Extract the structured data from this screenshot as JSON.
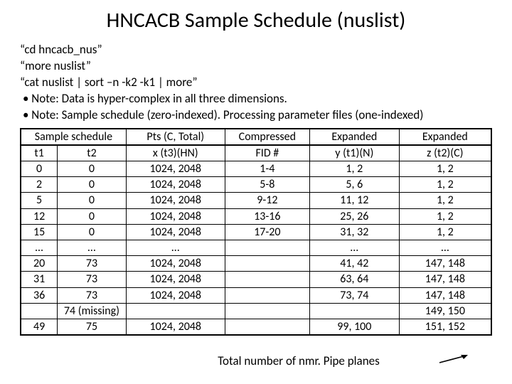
{
  "title": "HNCACB Sample Schedule (nuslist)",
  "lines": [
    "“cd hncacb_nus”",
    "“more nuslist”",
    "“cat nuslist | sort –n -k2 -k1 | more”",
    "•   Note: Data is hyper-complex in all three dimensions.",
    "•   Note: Sample schedule (zero-indexed). Processing parameter files (one-indexed)"
  ],
  "headers": {
    "schedule": "Sample schedule",
    "t1": "t1",
    "t2": "t2",
    "pts_top": "Pts (C, Total)",
    "pts_sub": "x (t3)(HN)",
    "fid_top": "Compressed",
    "fid_sub": "FID #",
    "y_top": "Expanded",
    "y_sub": "y (t1)(N)",
    "z_top": "Expanded",
    "z_sub": "z (t2)(C)"
  },
  "rows": [
    {
      "t1": "0",
      "t2": "0",
      "pts": "1024, 2048",
      "fid": "1-4",
      "y": "1, 2",
      "z": "1, 2"
    },
    {
      "t1": "2",
      "t2": "0",
      "pts": "1024, 2048",
      "fid": "5-8",
      "y": "5, 6",
      "z": "1, 2"
    },
    {
      "t1": "5",
      "t2": "0",
      "pts": "1024, 2048",
      "fid": "9-12",
      "y": "11, 12",
      "z": "1, 2"
    },
    {
      "t1": "12",
      "t2": "0",
      "pts": "1024, 2048",
      "fid": "13-16",
      "y": "25, 26",
      "z": "1, 2"
    },
    {
      "t1": "15",
      "t2": "0",
      "pts": "1024, 2048",
      "fid": "17-20",
      "y": "31, 32",
      "z": "1, 2"
    },
    {
      "t1": "…",
      "t2": "…",
      "pts": "…",
      "fid": "",
      "y": "…",
      "z": "…"
    },
    {
      "t1": "20",
      "t2": "73",
      "pts": "1024, 2048",
      "fid": "",
      "y": "41, 42",
      "z": "147, 148"
    },
    {
      "t1": "31",
      "t2": "73",
      "pts": "1024, 2048",
      "fid": "",
      "y": "63, 64",
      "z": "147, 148"
    },
    {
      "t1": "36",
      "t2": "73",
      "pts": "1024, 2048",
      "fid": "",
      "y": "73, 74",
      "z": "147, 148"
    },
    {
      "t1": "",
      "t2": "74 (missing)",
      "pts": "",
      "fid": "",
      "y": "",
      "z": "149, 150"
    },
    {
      "t1": "49",
      "t2": "75",
      "pts": "1024, 2048",
      "fid": "",
      "y": "99, 100",
      "z": "151, 152"
    }
  ],
  "footer": "Total number of nmr. Pipe planes",
  "colors": {
    "text": "#000000",
    "bg": "#ffffff",
    "border": "#000000"
  }
}
